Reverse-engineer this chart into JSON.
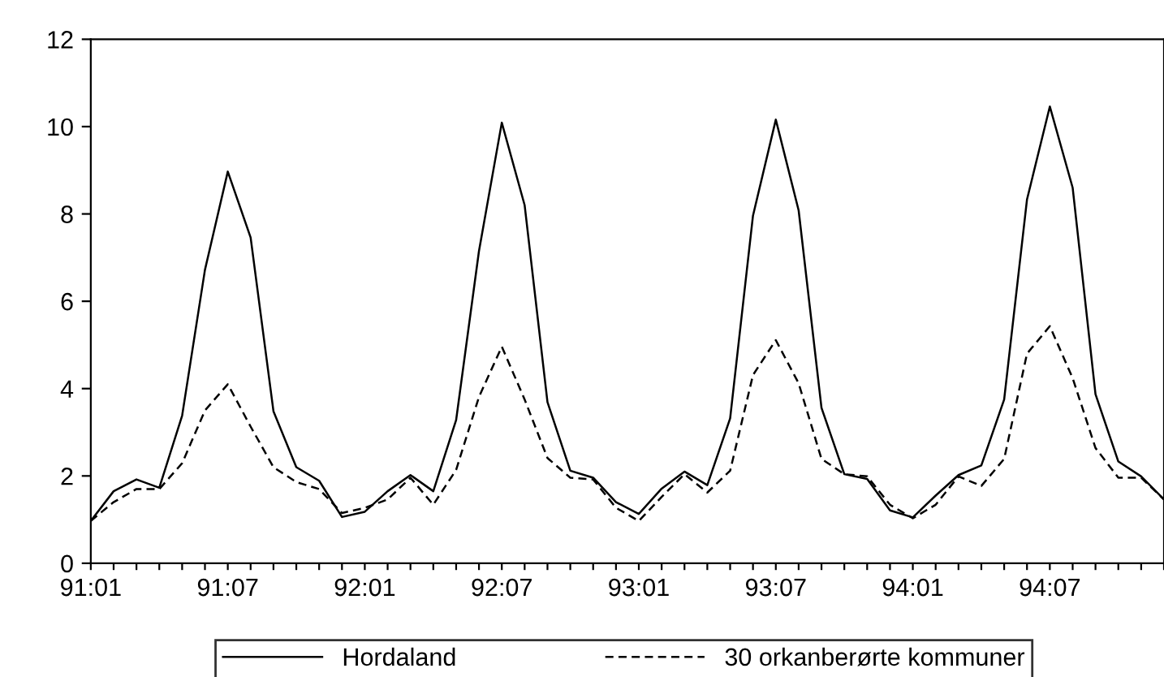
{
  "chart_data": {
    "type": "line",
    "categories": [
      "91:01",
      null,
      null,
      null,
      null,
      null,
      "91:07",
      null,
      null,
      null,
      null,
      null,
      "92:01",
      null,
      null,
      null,
      null,
      null,
      "92:07",
      null,
      null,
      null,
      null,
      null,
      "93:01",
      null,
      null,
      null,
      null,
      null,
      "93:07",
      null,
      null,
      null,
      null,
      null,
      "94:01",
      null,
      null,
      null,
      null,
      null,
      "94:07",
      null,
      null,
      null,
      null,
      null
    ],
    "series": [
      {
        "name": "Hordaland",
        "color": "#000000",
        "line_style": "solid",
        "values": [
          0.97,
          1.65,
          1.92,
          1.73,
          3.38,
          6.72,
          8.97,
          7.46,
          3.48,
          2.2,
          1.89,
          1.06,
          1.18,
          1.65,
          2.02,
          1.65,
          3.28,
          7.15,
          10.09,
          8.2,
          3.69,
          2.12,
          1.96,
          1.4,
          1.13,
          1.71,
          2.1,
          1.79,
          3.32,
          7.96,
          10.16,
          8.08,
          3.56,
          2.04,
          1.93,
          1.21,
          1.05,
          1.55,
          2.02,
          2.24,
          3.75,
          8.33,
          10.46,
          8.6,
          3.87,
          2.33,
          1.99,
          1.46
        ]
      },
      {
        "name": "30 orkanberørte kommuner",
        "color": "#000000",
        "line_style": "dashed",
        "values": [
          0.97,
          1.4,
          1.7,
          1.7,
          2.29,
          3.5,
          4.1,
          3.13,
          2.2,
          1.86,
          1.7,
          1.15,
          1.27,
          1.46,
          1.96,
          1.34,
          2.14,
          3.81,
          4.96,
          3.75,
          2.41,
          1.96,
          1.92,
          1.27,
          0.97,
          1.52,
          2.04,
          1.62,
          2.12,
          4.31,
          5.11,
          4.12,
          2.39,
          2.04,
          1.99,
          1.34,
          1.03,
          1.34,
          1.99,
          1.77,
          2.39,
          4.8,
          5.43,
          4.24,
          2.64,
          1.96,
          1.96,
          1.46
        ]
      }
    ],
    "ylim": [
      0,
      12
    ],
    "yticks": [
      0,
      2,
      4,
      6,
      8,
      10,
      12
    ],
    "grid": false,
    "legend": "bottom",
    "marker": "none"
  }
}
